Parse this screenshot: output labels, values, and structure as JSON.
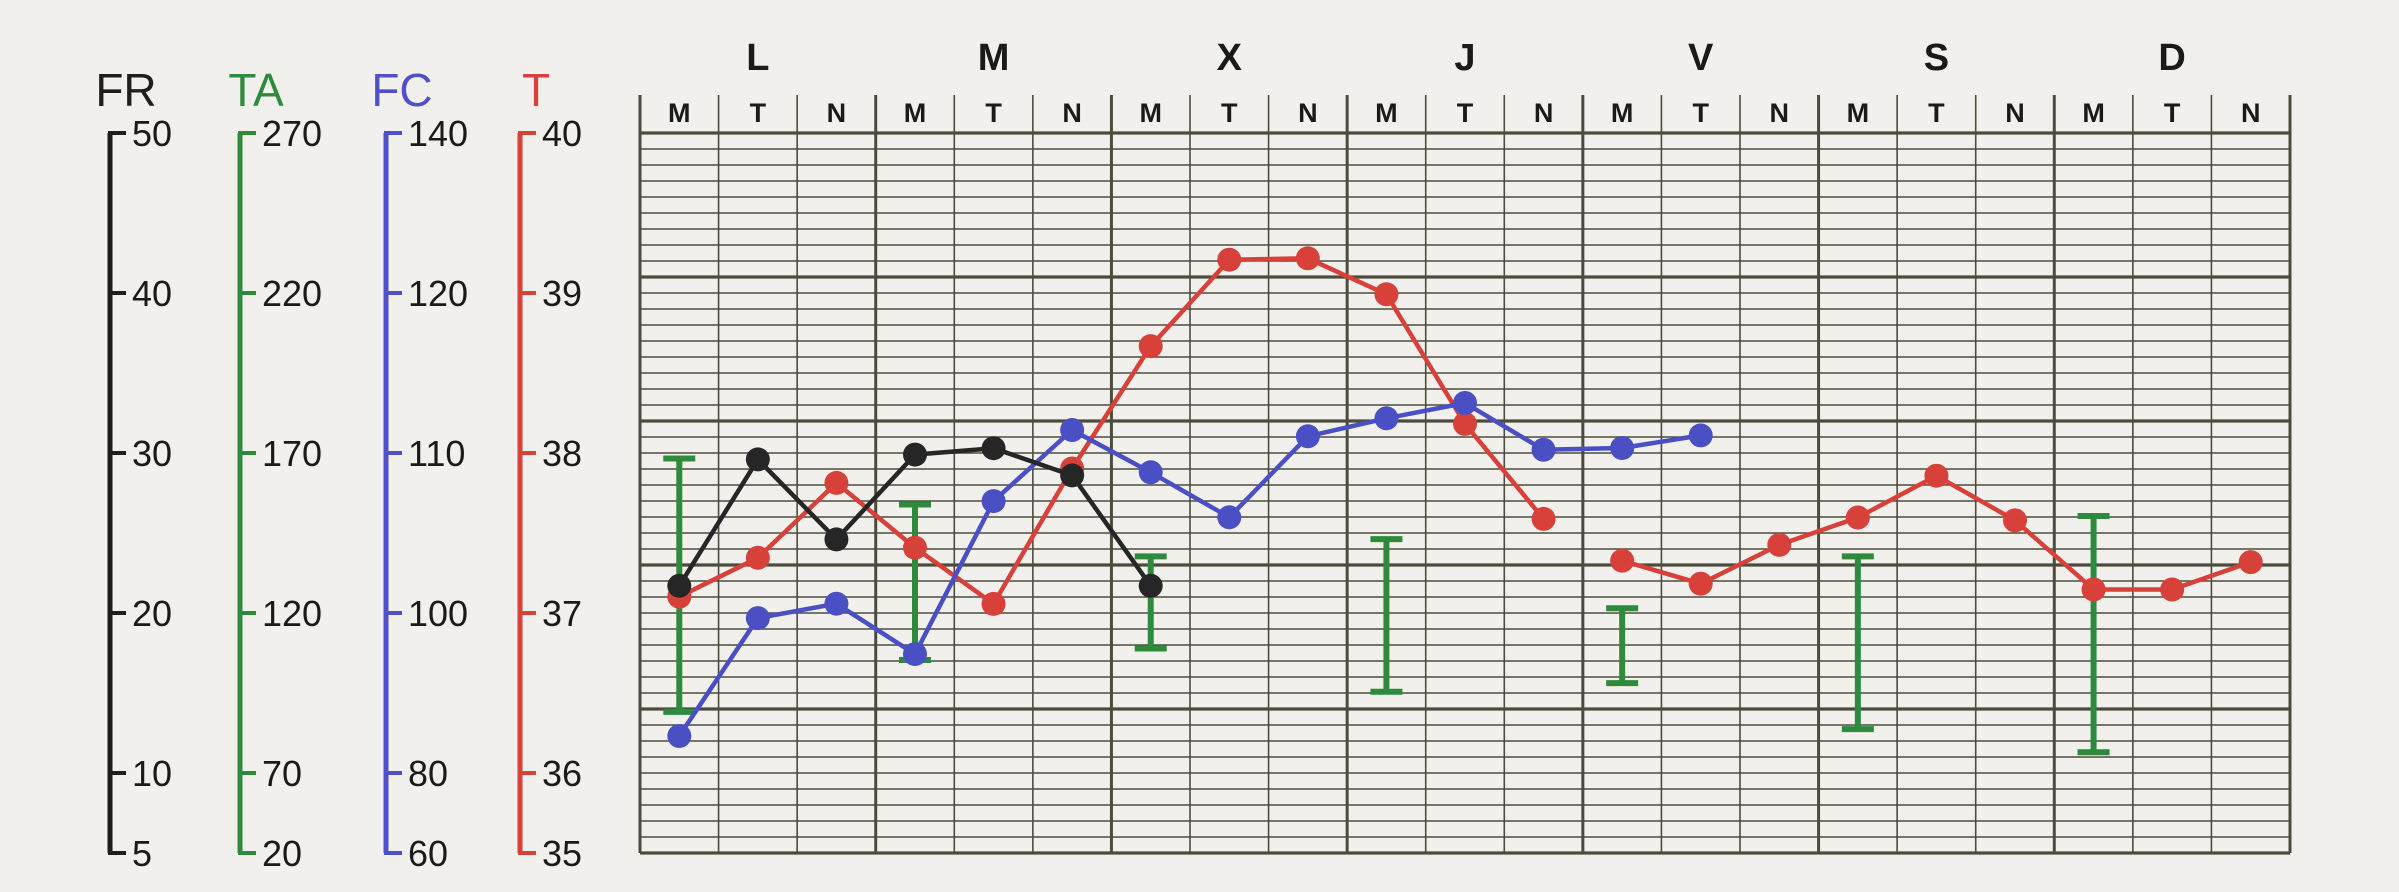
{
  "chart_data": {
    "type": "line",
    "days": [
      "L",
      "M",
      "X",
      "J",
      "V",
      "S",
      "D"
    ],
    "shifts": [
      "M",
      "T",
      "N"
    ],
    "axes": [
      {
        "name": "FR",
        "color": "#1e1e1e",
        "ticks": [
          {
            "value": 50,
            "label": "50"
          },
          {
            "value": 40,
            "label": "40"
          },
          {
            "value": 30,
            "label": "30"
          },
          {
            "value": 20,
            "label": "20"
          },
          {
            "value": 10,
            "label": "10"
          },
          {
            "value": 5,
            "label": "5"
          }
        ]
      },
      {
        "name": "TA",
        "color": "#2e8b3e",
        "ticks": [
          {
            "value": 270,
            "label": "270"
          },
          {
            "value": 220,
            "label": "220"
          },
          {
            "value": 170,
            "label": "170"
          },
          {
            "value": 120,
            "label": "120"
          },
          {
            "value": 70,
            "label": "70"
          },
          {
            "value": 20,
            "label": "20"
          }
        ]
      },
      {
        "name": "FC",
        "color": "#5050c8",
        "ticks": [
          {
            "value": 140,
            "label": "140"
          },
          {
            "value": 120,
            "label": "120"
          },
          {
            "value": 110,
            "label": "110"
          },
          {
            "value": 100,
            "label": "100"
          },
          {
            "value": 80,
            "label": "80"
          },
          {
            "value": 60,
            "label": "60"
          }
        ]
      },
      {
        "name": "T",
        "color": "#d8403a",
        "ticks": [
          {
            "value": 40,
            "label": "40"
          },
          {
            "value": 39,
            "label": "39"
          },
          {
            "value": 38,
            "label": "38"
          },
          {
            "value": 37,
            "label": "37"
          },
          {
            "value": 36,
            "label": "36"
          },
          {
            "value": 35,
            "label": "35"
          }
        ]
      }
    ],
    "series": [
      {
        "name": "T",
        "color": "#d8403a",
        "segments": [
          [
            [
              0,
              36.78
            ],
            [
              1,
              37.05
            ],
            [
              2,
              37.57
            ],
            [
              3,
              37.12
            ],
            [
              4,
              36.73
            ],
            [
              5,
              37.67
            ],
            [
              6,
              38.52
            ],
            [
              7,
              39.12
            ],
            [
              8,
              39.13
            ],
            [
              9,
              38.88
            ],
            [
              10,
              37.98
            ],
            [
              11,
              37.32
            ]
          ],
          [
            [
              12,
              37.03
            ],
            [
              13,
              36.87
            ],
            [
              14,
              37.14
            ],
            [
              15,
              37.33
            ],
            [
              16,
              37.62
            ],
            [
              17,
              37.31
            ],
            [
              18,
              36.83
            ],
            [
              19,
              36.83
            ],
            [
              20,
              37.02
            ]
          ]
        ]
      },
      {
        "name": "FC",
        "color": "#4a4fc4",
        "segments": [
          [
            [
              0,
              73.0
            ],
            [
              1,
              86.1
            ],
            [
              2,
              87.7
            ],
            [
              3,
              82.1
            ],
            [
              4,
              99.1
            ],
            [
              5,
              107.0
            ],
            [
              6,
              102.3
            ],
            [
              7,
              97.3
            ],
            [
              8,
              106.3
            ],
            [
              9,
              108.3
            ],
            [
              10,
              110.0
            ],
            [
              11,
              104.8
            ],
            [
              12,
              105.0
            ],
            [
              13,
              106.4
            ]
          ]
        ]
      },
      {
        "name": "FR",
        "color": "#262626",
        "segments": [
          [
            [
              0,
              21.7
            ],
            [
              1,
              29.6
            ],
            [
              2,
              24.6
            ],
            [
              3,
              29.9
            ],
            [
              4,
              30.3
            ],
            [
              5,
              28.6
            ],
            [
              6,
              21.7
            ]
          ]
        ]
      }
    ],
    "ta_bars": [
      {
        "pos": 0,
        "max": 157,
        "min": 69
      },
      {
        "pos": 3,
        "max": 141,
        "min": 87
      },
      {
        "pos": 6,
        "max": 123,
        "min": 91
      },
      {
        "pos": 9,
        "max": 129,
        "min": 76
      },
      {
        "pos": 12,
        "max": 105,
        "min": 79
      },
      {
        "pos": 15,
        "max": 123,
        "min": 63
      },
      {
        "pos": 18,
        "max": 137,
        "min": 55
      }
    ]
  }
}
